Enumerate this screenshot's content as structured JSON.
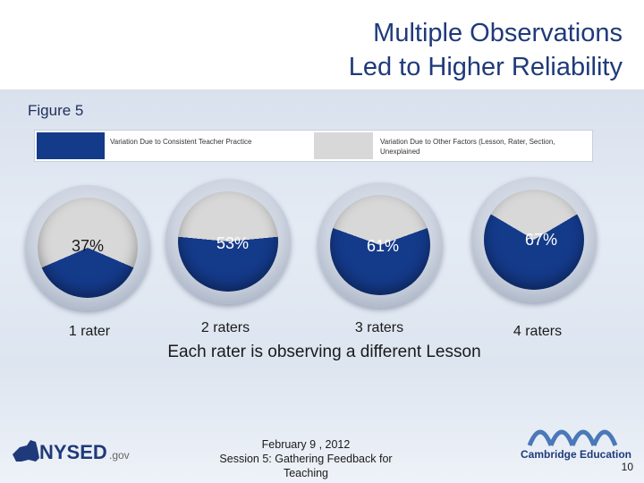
{
  "slide": {
    "title_line1": "Multiple Observations",
    "title_line2": "Led to Higher Reliability",
    "figure_label": "Figure 5",
    "legend": {
      "consistent": "Variation Due to Consistent Teacher Practice",
      "other": "Variation Due to Other Factors (Lesson, Rater, Section, Unexplained"
    },
    "subcaption": "Each rater is observing a different Lesson",
    "footer_line1": "February 9 , 2012",
    "footer_line2": "Session 5: Gathering Feedback for",
    "footer_line3": "Teaching",
    "page_number": "10",
    "nysed_logo_text": "NYSED",
    "nysed_logo_suffix": ".gov",
    "ce_logo_text": "Cambridge Education"
  },
  "colors": {
    "consistent": "#143a8a",
    "other": "#d8d8d8",
    "title": "#1f3a7a"
  },
  "chart_data": {
    "type": "pie",
    "series_names": [
      "Variation Due to Consistent Teacher Practice",
      "Variation Due to Other Factors (Lesson, Rater, Section, Unexplained"
    ],
    "pies": [
      {
        "label": "1 rater",
        "value_text": "37%",
        "value": 37
      },
      {
        "label": "2 raters",
        "value_text": "53%",
        "value": 53
      },
      {
        "label": "3 raters",
        "value_text": "61%",
        "value": 61
      },
      {
        "label": "4 raters",
        "value_text": "67%",
        "value": 67
      }
    ]
  }
}
